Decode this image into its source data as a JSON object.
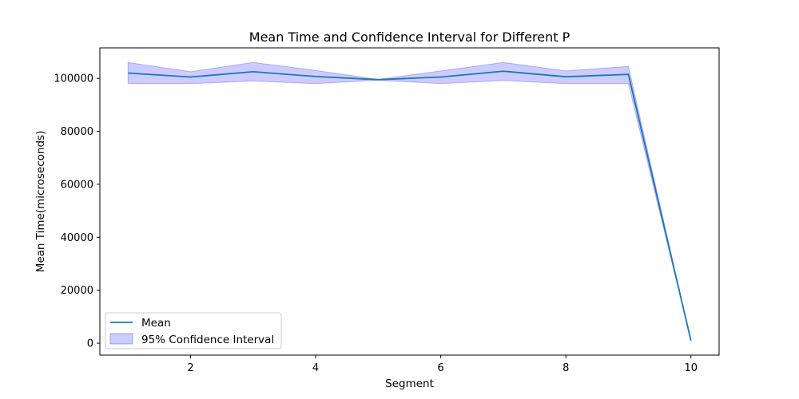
{
  "chart_data": {
    "type": "line",
    "title": "Mean Time and Confidence Interval for Different P",
    "xlabel": "Segment",
    "ylabel": "Mean Time(microseconds)",
    "xlim": [
      0.55,
      10.45
    ],
    "ylim": [
      -4500,
      111500
    ],
    "xticks": [
      2,
      4,
      6,
      8,
      10
    ],
    "yticks": [
      0,
      20000,
      40000,
      60000,
      80000,
      100000
    ],
    "grid": false,
    "legend_position": "bottom-left",
    "x": [
      1,
      2,
      3,
      4,
      5,
      6,
      7,
      8,
      9,
      10
    ],
    "series": [
      {
        "name": "Mean",
        "kind": "line",
        "color": "#1f77b4",
        "values": [
          102000,
          100500,
          102500,
          100700,
          99500,
          100500,
          102700,
          100600,
          101500,
          1000
        ]
      },
      {
        "name": "95% Confidence Interval",
        "kind": "band",
        "color": "#0000ff",
        "lower": [
          98000,
          98000,
          99000,
          98000,
          99300,
          98000,
          99200,
          98000,
          98000,
          1000
        ],
        "upper": [
          106000,
          102500,
          106000,
          103000,
          99600,
          102800,
          106000,
          102800,
          104500,
          1000
        ]
      }
    ]
  }
}
